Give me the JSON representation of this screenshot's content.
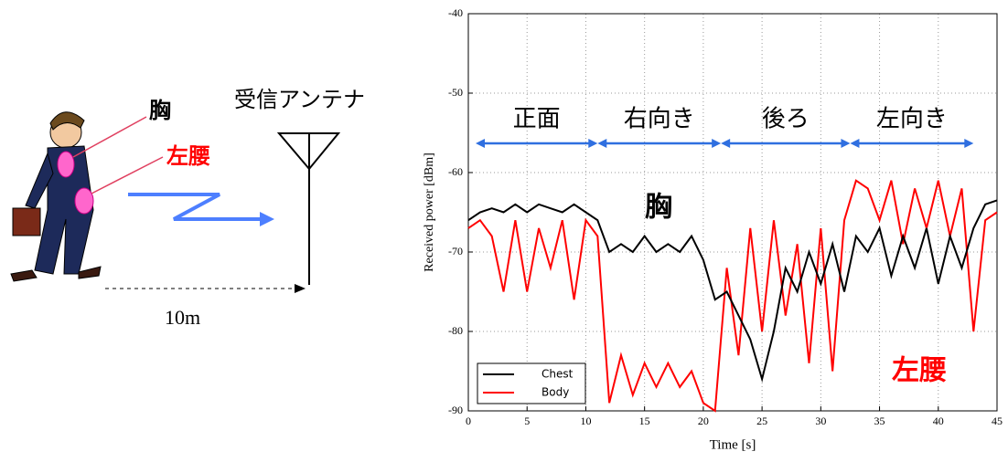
{
  "illustration": {
    "chest_label": "胸",
    "waist_label": "左腰",
    "antenna_label": "受信アンテナ",
    "distance_label": "10m"
  },
  "chart_data": {
    "type": "line",
    "xlabel": "Time [s]",
    "ylabel": "Received power [dBm]",
    "xlim": [
      0,
      45
    ],
    "xticks": [
      0,
      5,
      10,
      15,
      20,
      25,
      30,
      35,
      40,
      45
    ],
    "ylim": [
      -90,
      -40
    ],
    "yticks": [
      -90,
      -80,
      -70,
      -60,
      -50,
      -40
    ],
    "grid": true,
    "legend": "lower left",
    "annotations": [
      "正面",
      "右向き",
      "後ろ",
      "左向き",
      "胸",
      "左腰"
    ],
    "x": [
      0,
      1,
      2,
      3,
      4,
      5,
      6,
      7,
      8,
      9,
      10,
      11,
      12,
      13,
      14,
      15,
      16,
      17,
      18,
      19,
      20,
      21,
      22,
      23,
      24,
      25,
      26,
      27,
      28,
      29,
      30,
      31,
      32,
      33,
      34,
      35,
      36,
      37,
      38,
      39,
      40,
      41,
      42,
      43,
      44,
      45
    ],
    "series": [
      {
        "name": "Chest",
        "color": "#000000",
        "values": [
          -66,
          -65,
          -64.5,
          -65,
          -64,
          -65,
          -64,
          -64.5,
          -65,
          -64,
          -65,
          -66,
          -70,
          -69,
          -70,
          -68,
          -70,
          -69,
          -70,
          -68,
          -71,
          -76,
          -75,
          -78,
          -81,
          -86,
          -80,
          -72,
          -75,
          -70,
          -74,
          -69,
          -75,
          -68,
          -70,
          -67,
          -73,
          -68,
          -72,
          -67,
          -74,
          -68,
          -72,
          -67,
          -64,
          -63.5
        ]
      },
      {
        "name": "Body",
        "color": "#ff0000",
        "values": [
          -67,
          -66,
          -68,
          -75,
          -66,
          -75,
          -67,
          -72,
          -66,
          -76,
          -66,
          -68,
          -89,
          -83,
          -88,
          -84,
          -87,
          -84,
          -87,
          -85,
          -89,
          -90,
          -72,
          -83,
          -67,
          -80,
          -66,
          -78,
          -69,
          -84,
          -67,
          -85,
          -66,
          -61,
          -62,
          -66,
          -61,
          -69,
          -62,
          -67,
          -61,
          -68,
          -62,
          -80,
          -66,
          -65
        ]
      }
    ]
  }
}
